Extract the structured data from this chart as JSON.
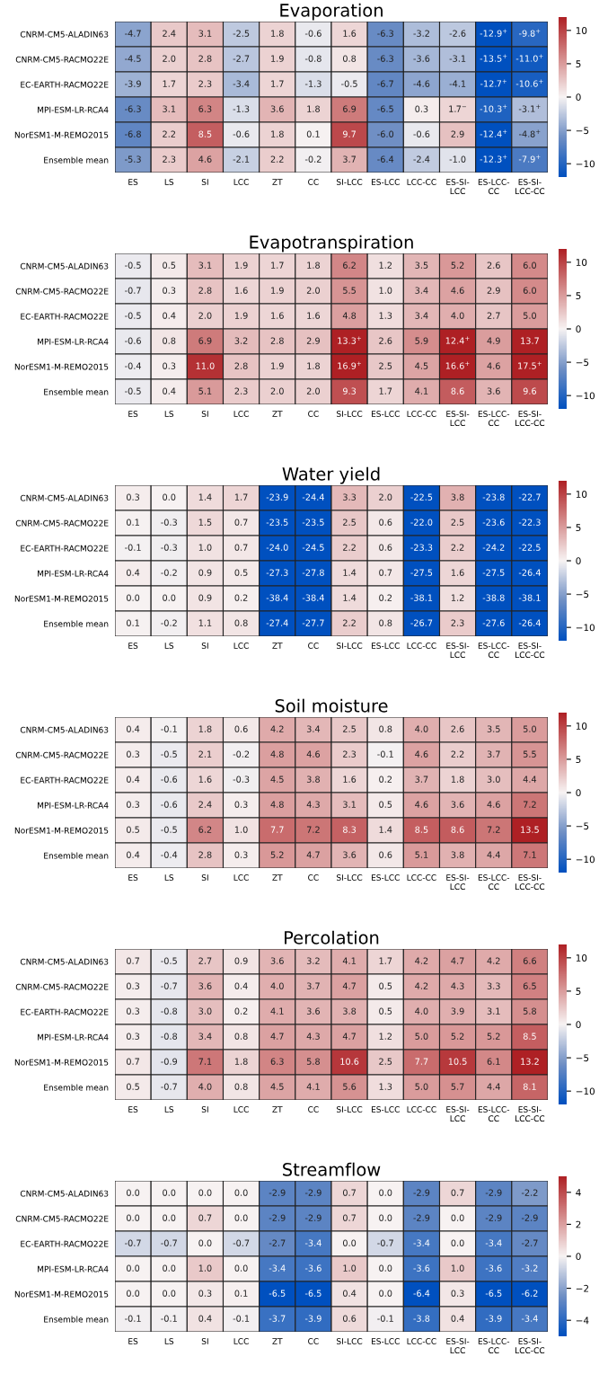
{
  "chart_data": [
    {
      "type": "heatmap",
      "title": "Evaporation",
      "categories": [
        "ES",
        "LS",
        "SI",
        "LCC",
        "ZT",
        "CC",
        "SI-LCC",
        "ES-LCC",
        "LCC-CC",
        "ES-SI-\nLCC",
        "ES-LCC-\nCC",
        "ES-SI-\nLCC-CC"
      ],
      "y_categories": [
        "CNRM-CM5-ALADIN63",
        "CNRM-CM5-RACMO22E",
        "EC-EARTH-RACMO22E",
        "MPI-ESM-LR-RCA4",
        "NorESM1-M-REMO2015",
        "Ensemble mean"
      ],
      "cells": [
        [
          -4.7,
          2.4,
          3.1,
          -2.5,
          1.8,
          -0.6,
          1.6,
          -6.3,
          -3.2,
          -2.6,
          -12.9,
          -9.8
        ],
        [
          -4.5,
          2.0,
          2.8,
          -2.7,
          1.9,
          -0.8,
          0.8,
          -6.3,
          -3.6,
          -3.1,
          -13.5,
          -11.0
        ],
        [
          -3.9,
          1.7,
          2.3,
          -3.4,
          1.7,
          -1.3,
          -0.5,
          -6.7,
          -4.6,
          -4.1,
          -12.7,
          -10.6
        ],
        [
          -6.3,
          3.1,
          6.3,
          -1.3,
          3.6,
          1.8,
          6.9,
          -6.5,
          0.3,
          1.7,
          -10.3,
          -3.1
        ],
        [
          -6.8,
          2.2,
          8.5,
          -0.6,
          1.8,
          0.1,
          9.7,
          -6.0,
          -0.6,
          2.9,
          -12.4,
          -4.8
        ],
        [
          -5.3,
          2.3,
          4.6,
          -2.1,
          2.2,
          -0.2,
          3.7,
          -6.4,
          -2.4,
          -1.0,
          -12.3,
          -7.9
        ]
      ],
      "cell_labels": [
        [
          "-4.7",
          "2.4",
          "3.1",
          "-2.5",
          "1.8",
          "-0.6",
          "1.6",
          "-6.3",
          "-3.2",
          "-2.6",
          "-12.9$^{+}$",
          "-9.8$^{+}$"
        ],
        [
          "-4.5",
          "2.0",
          "2.8",
          "-2.7",
          "1.9",
          "-0.8",
          "0.8",
          "-6.3",
          "-3.6",
          "-3.1",
          "-13.5$^{+}$",
          "-11.0$^{+}$"
        ],
        [
          "-3.9",
          "1.7",
          "2.3",
          "-3.4",
          "1.7",
          "-1.3",
          "-0.5",
          "-6.7",
          "-4.6",
          "-4.1",
          "-12.7$^{+}$",
          "-10.6$^{+}$"
        ],
        [
          "-6.3",
          "3.1",
          "6.3",
          "-1.3",
          "3.6",
          "1.8",
          "6.9",
          "-6.5",
          "0.3",
          "1.7$^{−}$",
          "-10.3$^{+}$",
          "-3.1$^{+}$"
        ],
        [
          "-6.8",
          "2.2",
          "8.5",
          "-0.6",
          "1.8",
          "0.1",
          "9.7",
          "-6.0",
          "-0.6",
          "2.9",
          "-12.4$^{+}$",
          "-4.8$^{+}$"
        ],
        [
          "-5.3",
          "2.3",
          "4.6",
          "-2.1",
          "2.2",
          "-0.2",
          "3.7",
          "-6.4",
          "-2.4",
          "-1.0",
          "-12.3$^{+}$",
          "-7.9$^{+}$"
        ]
      ],
      "clim": [
        -12,
        12
      ],
      "cticks": [
        {
          "value": -10,
          "label": "−10"
        },
        {
          "value": -5,
          "label": "−5"
        },
        0,
        5,
        10
      ],
      "data_labels": true
    },
    {
      "type": "heatmap",
      "title": "Evapotranspiration",
      "categories": [
        "ES",
        "LS",
        "SI",
        "LCC",
        "ZT",
        "CC",
        "SI-LCC",
        "ES-LCC",
        "LCC-CC",
        "ES-SI-\nLCC",
        "ES-LCC-\nCC",
        "ES-SI-\nLCC-CC"
      ],
      "y_categories": [
        "CNRM-CM5-ALADIN63",
        "CNRM-CM5-RACMO22E",
        "EC-EARTH-RACMO22E",
        "MPI-ESM-LR-RCA4",
        "NorESM1-M-REMO2015",
        "Ensemble mean"
      ],
      "cells": [
        [
          -0.5,
          0.5,
          3.1,
          1.9,
          1.7,
          1.8,
          6.2,
          1.2,
          3.5,
          5.2,
          2.6,
          6.0
        ],
        [
          -0.7,
          0.3,
          2.8,
          1.6,
          1.9,
          2.0,
          5.5,
          1.0,
          3.4,
          4.6,
          2.9,
          6.0
        ],
        [
          -0.5,
          0.4,
          2.0,
          1.9,
          1.6,
          1.6,
          4.8,
          1.3,
          3.4,
          4.0,
          2.7,
          5.0
        ],
        [
          -0.6,
          0.8,
          6.9,
          3.2,
          2.8,
          2.9,
          13.3,
          2.6,
          5.9,
          12.4,
          4.9,
          13.7
        ],
        [
          -0.4,
          0.3,
          11.0,
          2.8,
          1.9,
          1.8,
          16.9,
          2.5,
          4.5,
          16.6,
          4.6,
          17.5
        ],
        [
          -0.5,
          0.4,
          5.1,
          2.3,
          2.0,
          2.0,
          9.3,
          1.7,
          4.1,
          8.6,
          3.6,
          9.6
        ]
      ],
      "cell_labels": [
        [
          "-0.5",
          "0.5",
          "3.1",
          "1.9",
          "1.7",
          "1.8",
          "6.2",
          "1.2",
          "3.5",
          "5.2",
          "2.6",
          "6.0"
        ],
        [
          "-0.7",
          "0.3",
          "2.8",
          "1.6",
          "1.9",
          "2.0",
          "5.5",
          "1.0",
          "3.4",
          "4.6",
          "2.9",
          "6.0"
        ],
        [
          "-0.5",
          "0.4",
          "2.0",
          "1.9",
          "1.6",
          "1.6",
          "4.8",
          "1.3",
          "3.4",
          "4.0",
          "2.7",
          "5.0"
        ],
        [
          "-0.6",
          "0.8",
          "6.9",
          "3.2",
          "2.8",
          "2.9",
          "13.3$^{+}$",
          "2.6",
          "5.9",
          "12.4$^{+}$",
          "4.9",
          "13.7"
        ],
        [
          "-0.4",
          "0.3",
          "11.0",
          "2.8",
          "1.9",
          "1.8",
          "16.9$^{+}$",
          "2.5",
          "4.5",
          "16.6$^{+}$",
          "4.6",
          "17.5$^{+}$"
        ],
        [
          "-0.5",
          "0.4",
          "5.1",
          "2.3",
          "2.0",
          "2.0",
          "9.3",
          "1.7",
          "4.1",
          "8.6",
          "3.6",
          "9.6"
        ]
      ],
      "clim": [
        -12,
        12
      ],
      "cticks": [
        {
          "value": -10,
          "label": "−10"
        },
        {
          "value": -5,
          "label": "−5"
        },
        0,
        5,
        10
      ],
      "data_labels": true
    },
    {
      "type": "heatmap",
      "title": "Water yield",
      "categories": [
        "ES",
        "LS",
        "SI",
        "LCC",
        "ZT",
        "CC",
        "SI-LCC",
        "ES-LCC",
        "LCC-CC",
        "ES-SI-\nLCC",
        "ES-LCC-\nCC",
        "ES-SI-\nLCC-CC"
      ],
      "y_categories": [
        "CNRM-CM5-ALADIN63",
        "CNRM-CM5-RACMO22E",
        "EC-EARTH-RACMO22E",
        "MPI-ESM-LR-RCA4",
        "NorESM1-M-REMO2015",
        "Ensemble mean"
      ],
      "cells": [
        [
          0.3,
          0.0,
          1.4,
          1.7,
          -23.9,
          -24.4,
          3.3,
          2.0,
          -22.5,
          3.8,
          -23.8,
          -22.7
        ],
        [
          0.1,
          -0.3,
          1.5,
          0.7,
          -23.5,
          -23.5,
          2.5,
          0.6,
          -22.0,
          2.5,
          -23.6,
          -22.3
        ],
        [
          -0.1,
          -0.3,
          1.0,
          0.7,
          -24.0,
          -24.5,
          2.2,
          0.6,
          -23.3,
          2.2,
          -24.2,
          -22.5
        ],
        [
          0.4,
          -0.2,
          0.9,
          0.5,
          -27.3,
          -27.8,
          1.4,
          0.7,
          -27.5,
          1.6,
          -27.5,
          -26.4
        ],
        [
          0.0,
          0.0,
          0.9,
          0.2,
          -38.4,
          -38.4,
          1.4,
          0.2,
          -38.1,
          1.2,
          -38.8,
          -38.1
        ],
        [
          0.1,
          -0.2,
          1.1,
          0.8,
          -27.4,
          -27.7,
          2.2,
          0.8,
          -26.7,
          2.3,
          -27.6,
          -26.4
        ]
      ],
      "cell_labels": [
        [
          "0.3",
          "0.0",
          "1.4",
          "1.7",
          "-23.9",
          "-24.4",
          "3.3",
          "2.0",
          "-22.5",
          "3.8",
          "-23.8",
          "-22.7"
        ],
        [
          "0.1",
          "-0.3",
          "1.5",
          "0.7",
          "-23.5",
          "-23.5",
          "2.5",
          "0.6",
          "-22.0",
          "2.5",
          "-23.6",
          "-22.3"
        ],
        [
          "-0.1",
          "-0.3",
          "1.0",
          "0.7",
          "-24.0",
          "-24.5",
          "2.2",
          "0.6",
          "-23.3",
          "2.2",
          "-24.2",
          "-22.5"
        ],
        [
          "0.4",
          "-0.2",
          "0.9",
          "0.5",
          "-27.3",
          "-27.8",
          "1.4",
          "0.7",
          "-27.5",
          "1.6",
          "-27.5",
          "-26.4"
        ],
        [
          "0.0",
          "0.0",
          "0.9",
          "0.2",
          "-38.4",
          "-38.4",
          "1.4",
          "0.2",
          "-38.1",
          "1.2",
          "-38.8",
          "-38.1"
        ],
        [
          "0.1",
          "-0.2",
          "1.1",
          "0.8",
          "-27.4",
          "-27.7",
          "2.2",
          "0.8",
          "-26.7",
          "2.3",
          "-27.6",
          "-26.4"
        ]
      ],
      "clim": [
        -12,
        12
      ],
      "cticks": [
        {
          "value": -10,
          "label": "−10"
        },
        {
          "value": -5,
          "label": "−5"
        },
        0,
        5,
        10
      ],
      "data_labels": true
    },
    {
      "type": "heatmap",
      "title": "Soil moisture",
      "categories": [
        "ES",
        "LS",
        "SI",
        "LCC",
        "ZT",
        "CC",
        "SI-LCC",
        "ES-LCC",
        "LCC-CC",
        "ES-SI-\nLCC",
        "ES-LCC-\nCC",
        "ES-SI-\nLCC-CC"
      ],
      "y_categories": [
        "CNRM-CM5-ALADIN63",
        "CNRM-CM5-RACMO22E",
        "EC-EARTH-RACMO22E",
        "MPI-ESM-LR-RCA4",
        "NorESM1-M-REMO2015",
        "Ensemble mean"
      ],
      "cells": [
        [
          0.4,
          -0.1,
          1.8,
          0.6,
          4.2,
          3.4,
          2.5,
          0.8,
          4.0,
          2.6,
          3.5,
          5.0
        ],
        [
          0.3,
          -0.5,
          2.1,
          -0.2,
          4.8,
          4.6,
          2.3,
          -0.1,
          4.6,
          2.2,
          3.7,
          5.5
        ],
        [
          0.4,
          -0.6,
          1.6,
          -0.3,
          4.5,
          3.8,
          1.6,
          0.2,
          3.7,
          1.8,
          3.0,
          4.4
        ],
        [
          0.3,
          -0.6,
          2.4,
          0.3,
          4.8,
          4.3,
          3.1,
          0.5,
          4.6,
          3.6,
          4.6,
          7.2
        ],
        [
          0.5,
          -0.5,
          6.2,
          1.0,
          7.7,
          7.2,
          8.3,
          1.4,
          8.5,
          8.6,
          7.2,
          13.5
        ],
        [
          0.4,
          -0.4,
          2.8,
          0.3,
          5.2,
          4.7,
          3.6,
          0.6,
          5.1,
          3.8,
          4.4,
          7.1
        ]
      ],
      "cell_labels": [
        [
          "0.4",
          "-0.1",
          "1.8",
          "0.6",
          "4.2",
          "3.4",
          "2.5",
          "0.8",
          "4.0",
          "2.6",
          "3.5",
          "5.0"
        ],
        [
          "0.3",
          "-0.5",
          "2.1",
          "-0.2",
          "4.8",
          "4.6",
          "2.3",
          "-0.1",
          "4.6",
          "2.2",
          "3.7",
          "5.5"
        ],
        [
          "0.4",
          "-0.6",
          "1.6",
          "-0.3",
          "4.5",
          "3.8",
          "1.6",
          "0.2",
          "3.7",
          "1.8",
          "3.0",
          "4.4"
        ],
        [
          "0.3",
          "-0.6",
          "2.4",
          "0.3",
          "4.8",
          "4.3",
          "3.1",
          "0.5",
          "4.6",
          "3.6",
          "4.6",
          "7.2"
        ],
        [
          "0.5",
          "-0.5",
          "6.2",
          "1.0",
          "7.7",
          "7.2",
          "8.3",
          "1.4",
          "8.5",
          "8.6",
          "7.2",
          "13.5"
        ],
        [
          "0.4",
          "-0.4",
          "2.8",
          "0.3",
          "5.2",
          "4.7",
          "3.6",
          "0.6",
          "5.1",
          "3.8",
          "4.4",
          "7.1"
        ]
      ],
      "clim": [
        -12,
        12
      ],
      "cticks": [
        {
          "value": -10,
          "label": "−10"
        },
        {
          "value": -5,
          "label": "−5"
        },
        0,
        5,
        10
      ],
      "data_labels": true
    },
    {
      "type": "heatmap",
      "title": "Percolation",
      "categories": [
        "ES",
        "LS",
        "SI",
        "LCC",
        "ZT",
        "CC",
        "SI-LCC",
        "ES-LCC",
        "LCC-CC",
        "ES-SI-\nLCC",
        "ES-LCC-\nCC",
        "ES-SI-\nLCC-CC"
      ],
      "y_categories": [
        "CNRM-CM5-ALADIN63",
        "CNRM-CM5-RACMO22E",
        "EC-EARTH-RACMO22E",
        "MPI-ESM-LR-RCA4",
        "NorESM1-M-REMO2015",
        "Ensemble mean"
      ],
      "cells": [
        [
          0.7,
          -0.5,
          2.7,
          0.9,
          3.6,
          3.2,
          4.1,
          1.7,
          4.2,
          4.7,
          4.2,
          6.6
        ],
        [
          0.3,
          -0.7,
          3.6,
          0.4,
          4.0,
          3.7,
          4.7,
          0.5,
          4.2,
          4.3,
          3.3,
          6.5
        ],
        [
          0.3,
          -0.8,
          3.0,
          0.2,
          4.1,
          3.6,
          3.8,
          0.5,
          4.0,
          3.9,
          3.1,
          5.8
        ],
        [
          0.3,
          -0.8,
          3.4,
          0.8,
          4.7,
          4.3,
          4.7,
          1.2,
          5.0,
          5.2,
          5.2,
          8.5
        ],
        [
          0.7,
          -0.9,
          7.1,
          1.8,
          6.3,
          5.8,
          10.6,
          2.5,
          7.7,
          10.5,
          6.1,
          13.2
        ],
        [
          0.5,
          -0.7,
          4.0,
          0.8,
          4.5,
          4.1,
          5.6,
          1.3,
          5.0,
          5.7,
          4.4,
          8.1
        ]
      ],
      "cell_labels": [
        [
          "0.7",
          "-0.5",
          "2.7",
          "0.9",
          "3.6",
          "3.2",
          "4.1",
          "1.7",
          "4.2",
          "4.7",
          "4.2",
          "6.6"
        ],
        [
          "0.3",
          "-0.7",
          "3.6",
          "0.4",
          "4.0",
          "3.7",
          "4.7",
          "0.5",
          "4.2",
          "4.3",
          "3.3",
          "6.5"
        ],
        [
          "0.3",
          "-0.8",
          "3.0",
          "0.2",
          "4.1",
          "3.6",
          "3.8",
          "0.5",
          "4.0",
          "3.9",
          "3.1",
          "5.8"
        ],
        [
          "0.3",
          "-0.8",
          "3.4",
          "0.8",
          "4.7",
          "4.3",
          "4.7",
          "1.2",
          "5.0",
          "5.2",
          "5.2",
          "8.5"
        ],
        [
          "0.7",
          "-0.9",
          "7.1",
          "1.8",
          "6.3",
          "5.8",
          "10.6",
          "2.5",
          "7.7",
          "10.5",
          "6.1",
          "13.2"
        ],
        [
          "0.5",
          "-0.7",
          "4.0",
          "0.8",
          "4.5",
          "4.1",
          "5.6",
          "1.3",
          "5.0",
          "5.7",
          "4.4",
          "8.1"
        ]
      ],
      "clim": [
        -12,
        12
      ],
      "cticks": [
        {
          "value": -10,
          "label": "−10"
        },
        {
          "value": -5,
          "label": "−5"
        },
        0,
        5,
        10
      ],
      "data_labels": true
    },
    {
      "type": "heatmap",
      "title": "Streamflow",
      "categories": [
        "ES",
        "LS",
        "SI",
        "LCC",
        "ZT",
        "CC",
        "SI-LCC",
        "ES-LCC",
        "LCC-CC",
        "ES-SI-\nLCC",
        "ES-LCC-\nCC",
        "ES-SI-\nLCC-CC"
      ],
      "y_categories": [
        "CNRM-CM5-ALADIN63",
        "CNRM-CM5-RACMO22E",
        "EC-EARTH-RACMO22E",
        "MPI-ESM-LR-RCA4",
        "NorESM1-M-REMO2015",
        "Ensemble mean"
      ],
      "cells": [
        [
          0.0,
          0.0,
          0.0,
          0.0,
          -2.9,
          -2.9,
          0.7,
          0.0,
          -2.9,
          0.7,
          -2.9,
          -2.2
        ],
        [
          0.0,
          0.0,
          0.7,
          0.0,
          -2.9,
          -2.9,
          0.7,
          0.0,
          -2.9,
          0.0,
          -2.9,
          -2.9
        ],
        [
          -0.7,
          -0.7,
          0.0,
          -0.7,
          -2.7,
          -3.4,
          0.0,
          -0.7,
          -3.4,
          0.0,
          -3.4,
          -2.7
        ],
        [
          0.0,
          0.0,
          1.0,
          0.0,
          -3.4,
          -3.6,
          1.0,
          0.0,
          -3.6,
          1.0,
          -3.6,
          -3.2
        ],
        [
          0.0,
          0.0,
          0.3,
          0.1,
          -6.5,
          -6.5,
          0.4,
          0.0,
          -6.4,
          0.3,
          -6.5,
          -6.2
        ],
        [
          -0.1,
          -0.1,
          0.4,
          -0.1,
          -3.7,
          -3.9,
          0.6,
          -0.1,
          -3.8,
          0.4,
          -3.9,
          -3.4
        ]
      ],
      "cell_labels": [
        [
          "0.0",
          "0.0",
          "0.0",
          "0.0",
          "-2.9",
          "-2.9",
          "0.7",
          "0.0",
          "-2.9",
          "0.7",
          "-2.9",
          "-2.2"
        ],
        [
          "0.0",
          "0.0",
          "0.7",
          "0.0",
          "-2.9",
          "-2.9",
          "0.7",
          "0.0",
          "-2.9",
          "0.0",
          "-2.9",
          "-2.9"
        ],
        [
          "-0.7",
          "-0.7",
          "0.0",
          "-0.7",
          "-2.7",
          "-3.4",
          "0.0",
          "-0.7",
          "-3.4",
          "0.0",
          "-3.4",
          "-2.7"
        ],
        [
          "0.0",
          "0.0",
          "1.0",
          "0.0",
          "-3.4",
          "-3.6",
          "1.0",
          "0.0",
          "-3.6",
          "1.0",
          "-3.6",
          "-3.2"
        ],
        [
          "0.0",
          "0.0",
          "0.3",
          "0.1",
          "-6.5",
          "-6.5",
          "0.4",
          "0.0",
          "-6.4",
          "0.3",
          "-6.5",
          "-6.2"
        ],
        [
          "-0.1",
          "-0.1",
          "0.4",
          "-0.1",
          "-3.7",
          "-3.9",
          "0.6",
          "-0.1",
          "-3.8",
          "0.4",
          "-3.9",
          "-3.4"
        ]
      ],
      "clim": [
        -5,
        5
      ],
      "cticks": [
        {
          "value": -4,
          "label": "−4"
        },
        {
          "value": -2,
          "label": "−2"
        },
        0,
        2,
        4
      ],
      "data_labels": true
    }
  ]
}
